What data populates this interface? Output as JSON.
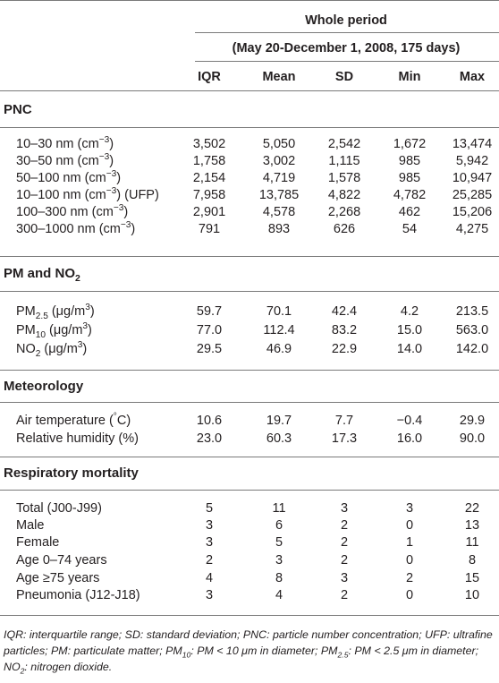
{
  "header": {
    "group": "Whole period",
    "period": "(May 20-December 1, 2008, 175 days)",
    "columns": [
      "IQR",
      "Mean",
      "SD",
      "Min",
      "Max"
    ]
  },
  "sections": [
    {
      "title": "PNC",
      "rows": [
        {
          "label": "10–30 nm (cm",
          "sup": "−3",
          "tail": ")",
          "values": [
            "3,502",
            "5,050",
            "2,542",
            "1,672",
            "13,474"
          ]
        },
        {
          "label": "30–50 nm (cm",
          "sup": "−3",
          "tail": ")",
          "values": [
            "1,758",
            "3,002",
            "1,115",
            "985",
            "5,942"
          ]
        },
        {
          "label": "50–100 nm (cm",
          "sup": "−3",
          "tail": ")",
          "values": [
            "2,154",
            "4,719",
            "1,578",
            "985",
            "10,947"
          ]
        },
        {
          "label": "10–100 nm (cm",
          "sup": "−3",
          "tail": ") (UFP)",
          "values": [
            "7,958",
            "13,785",
            "4,822",
            "4,782",
            "25,285"
          ]
        },
        {
          "label": "100–300 nm (cm",
          "sup": "−3",
          "tail": ")",
          "values": [
            "2,901",
            "4,578",
            "2,268",
            "462",
            "15,206"
          ]
        },
        {
          "label": "300–1000 nm (cm",
          "sup": "−3",
          "tail": ")",
          "values": [
            "791",
            "893",
            "626",
            "54",
            "4,275"
          ]
        }
      ]
    },
    {
      "title_main": "PM and NO",
      "title_sub": "2",
      "rows": [
        {
          "label": "PM",
          "sub": "2.5",
          "mid": " (μg/m",
          "sup": "3",
          "tail": ")",
          "values": [
            "59.7",
            "70.1",
            "42.4",
            "4.2",
            "213.5"
          ]
        },
        {
          "label": "PM",
          "sub": "10",
          "mid": " (μg/m",
          "sup": "3",
          "tail": ")",
          "values": [
            "77.0",
            "112.4",
            "83.2",
            "15.0",
            "563.0"
          ]
        },
        {
          "label": "NO",
          "sub": "2",
          "mid": " (μg/m",
          "sup": "3",
          "tail": ")",
          "values": [
            "29.5",
            "46.9",
            "22.9",
            "14.0",
            "142.0"
          ]
        }
      ]
    },
    {
      "title": "Meteorology",
      "rows": [
        {
          "label": "Air temperature (",
          "sup": "°",
          "tail": "C)",
          "values": [
            "10.6",
            "19.7",
            "7.7",
            "−0.4",
            "29.9"
          ]
        },
        {
          "label": "Relative humidity (%)",
          "values": [
            "23.0",
            "60.3",
            "17.3",
            "16.0",
            "90.0"
          ]
        }
      ]
    },
    {
      "title": "Respiratory mortality",
      "rows": [
        {
          "label": "Total (J00-J99)",
          "values": [
            "5",
            "11",
            "3",
            "3",
            "22"
          ]
        },
        {
          "label": "Male",
          "values": [
            "3",
            "6",
            "2",
            "0",
            "13"
          ]
        },
        {
          "label": "Female",
          "values": [
            "3",
            "5",
            "2",
            "1",
            "11"
          ]
        },
        {
          "label": "Age 0–74 years",
          "values": [
            "2",
            "3",
            "2",
            "0",
            "8"
          ]
        },
        {
          "label": "Age ≥75 years",
          "values": [
            "4",
            "8",
            "3",
            "2",
            "15"
          ]
        },
        {
          "label": "Pneumonia (J12-J18)",
          "values": [
            "3",
            "4",
            "2",
            "0",
            "10"
          ]
        }
      ]
    }
  ],
  "footnote": {
    "p1": "IQR: interquartile range; SD: standard deviation; PNC: particle number concentration; UFP: ultrafine particles; PM: particulate matter; PM",
    "s1": "10",
    "p2": ": PM < 10 μm in diameter; PM",
    "s2": "2.5",
    "p3": ": PM < 2.5 μm in diameter; NO",
    "s3": "2",
    "p4": ": nitrogen dioxide."
  }
}
